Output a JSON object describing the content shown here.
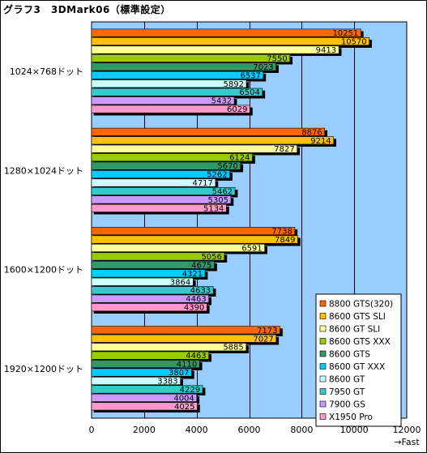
{
  "title": "グラフ3　3DMark06（標準設定）",
  "chart_data": {
    "type": "bar",
    "orientation": "horizontal",
    "title": "グラフ3　3DMark06（標準設定）",
    "categories": [
      "1024×768ドット",
      "1280×1024ドット",
      "1600×1200ドット",
      "1920×1200ドット"
    ],
    "xlim": [
      0,
      12000
    ],
    "xticks": [
      0,
      2000,
      4000,
      6000,
      8000,
      10000,
      12000
    ],
    "xlabel": "→Fast",
    "grid": true,
    "legend_position": "bottom-right",
    "series": [
      {
        "name": "8800 GTS(320)",
        "color": "#ff6600",
        "values": [
          10251,
          8876,
          7738,
          7173
        ]
      },
      {
        "name": "8600 GTS SLI",
        "color": "#ffc000",
        "values": [
          10570,
          9214,
          7849,
          7027
        ]
      },
      {
        "name": "8600 GT SLI",
        "color": "#ffff99",
        "values": [
          9413,
          7827,
          6591,
          5885
        ]
      },
      {
        "name": "8600 GTS XXX",
        "color": "#99cc00",
        "values": [
          7550,
          6124,
          5056,
          4463
        ]
      },
      {
        "name": "8600 GTS",
        "color": "#339966",
        "values": [
          7023,
          5670,
          4675,
          4110
        ]
      },
      {
        "name": "8600 GT XXX",
        "color": "#00ccff",
        "values": [
          6537,
          5262,
          4321,
          3807
        ]
      },
      {
        "name": "8600 GT",
        "color": "#ccffff",
        "values": [
          5892,
          4717,
          3864,
          3383
        ]
      },
      {
        "name": "7950 GT",
        "color": "#33cccc",
        "values": [
          6504,
          5462,
          4633,
          4229
        ]
      },
      {
        "name": "7900 GS",
        "color": "#cc99ff",
        "values": [
          5432,
          5305,
          4463,
          4004
        ]
      },
      {
        "name": "X1950 Pro",
        "color": "#ff99cc",
        "values": [
          6029,
          5134,
          4390,
          4025
        ]
      }
    ],
    "colors": {
      "plot_background": "#99ccff",
      "gridline": "#000000"
    }
  }
}
